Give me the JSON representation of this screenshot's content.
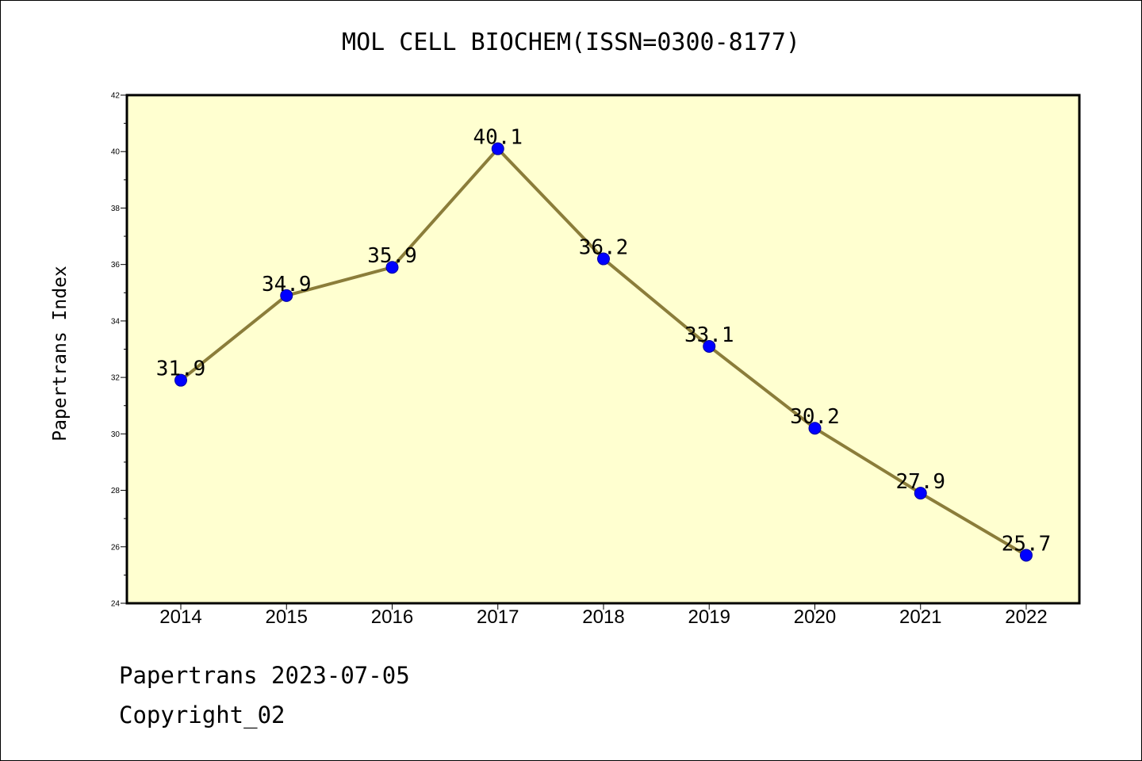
{
  "chart_data": {
    "type": "line",
    "title": "MOL CELL BIOCHEM(ISSN=0300-8177)",
    "xlabel": "",
    "ylabel": "Papertrans Index",
    "x": [
      "2014",
      "2015",
      "2016",
      "2017",
      "2018",
      "2019",
      "2020",
      "2021",
      "2022"
    ],
    "series": [
      {
        "values": [
          31.9,
          34.9,
          35.9,
          40.1,
          36.2,
          33.1,
          30.2,
          27.9,
          25.7
        ],
        "labels": [
          "31.9",
          "34.9",
          "35.9",
          "40.1",
          "36.2",
          "33.1",
          "30.2",
          "27.9",
          "25.7"
        ]
      }
    ],
    "ylim": [
      24,
      42
    ],
    "yticks": [
      "24",
      "26",
      "28",
      "30",
      "32",
      "34",
      "36",
      "38",
      "40",
      "42"
    ],
    "grid": false,
    "colors": {
      "plot_background": "#ffffd0",
      "line": "#8b7d3a",
      "marker": "#0000ff"
    }
  },
  "footer": {
    "line1": "Papertrans 2023-07-05",
    "line2": "Copyright_02"
  }
}
